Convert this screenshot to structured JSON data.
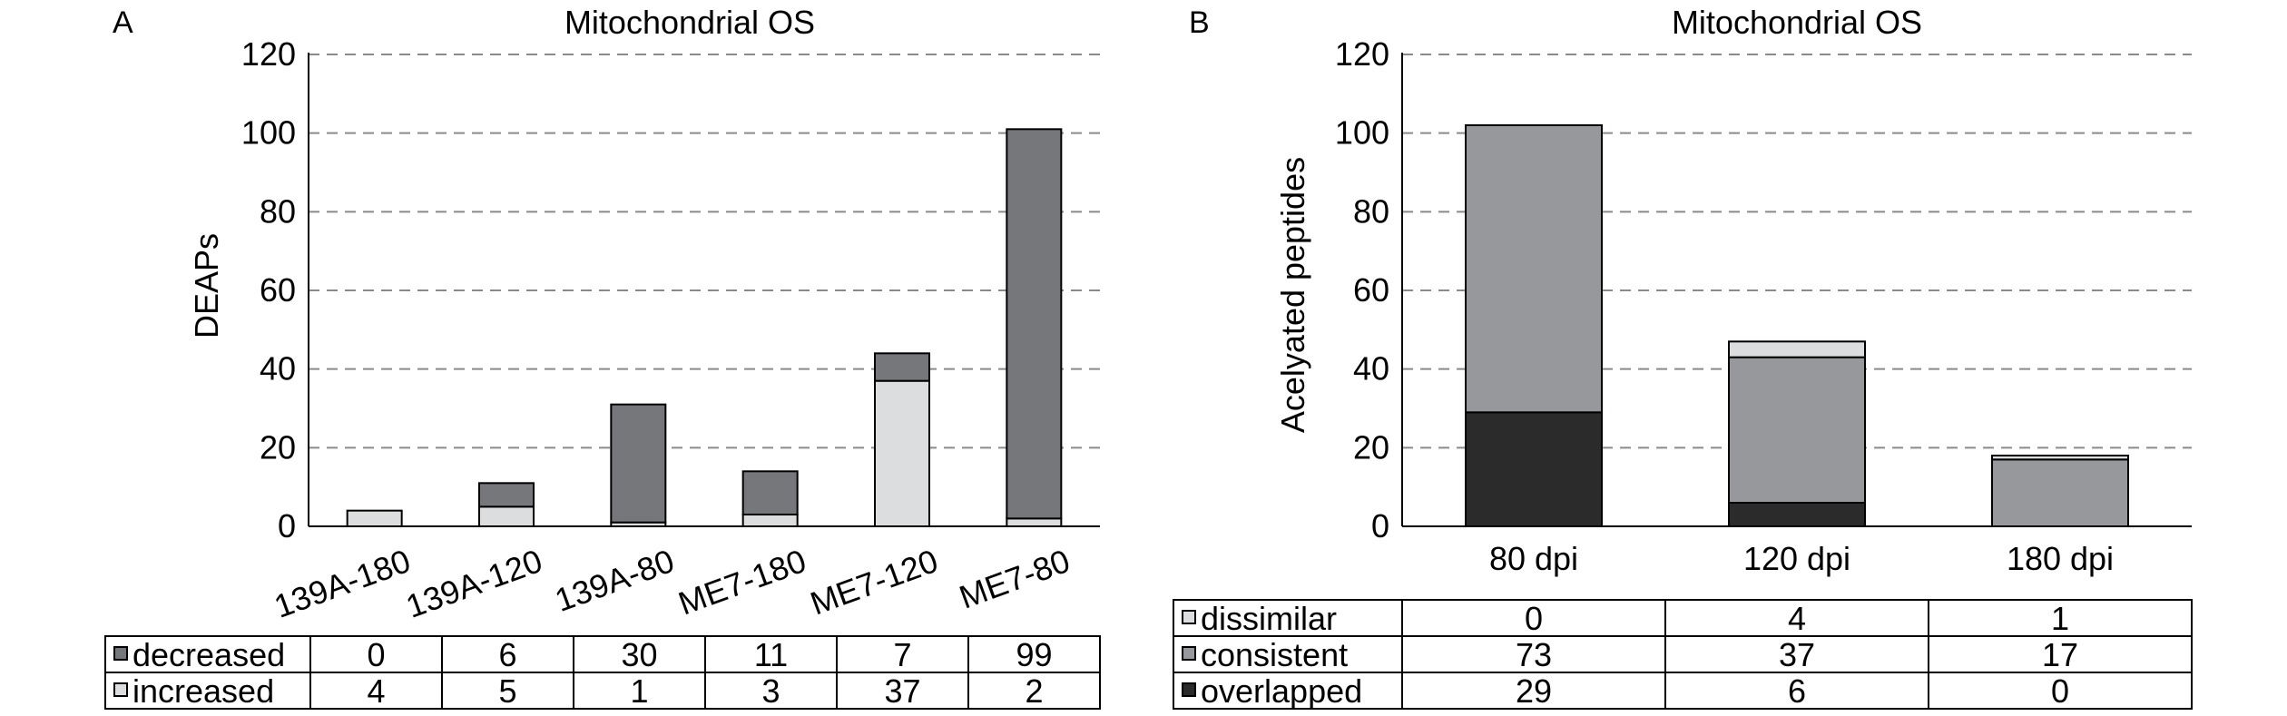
{
  "chart_data": [
    {
      "panel_label": "A",
      "type": "bar",
      "stacked": true,
      "title": "Mitochondrial OS",
      "ylabel": "DEAPs",
      "xlabel": "",
      "ylim": [
        0,
        120
      ],
      "yticks": [
        0,
        20,
        40,
        60,
        80,
        100,
        120
      ],
      "grid": true,
      "categories": [
        "139A-180",
        "139A-120",
        "139A-80",
        "ME7-180",
        "ME7-120",
        "ME7-80"
      ],
      "series": [
        {
          "name": "increased",
          "color": "#dcdddf",
          "values": [
            4,
            5,
            1,
            3,
            37,
            2
          ]
        },
        {
          "name": "decreased",
          "color": "#76777b",
          "values": [
            0,
            6,
            30,
            11,
            7,
            99
          ]
        }
      ],
      "table_rows": [
        {
          "label": "decreased",
          "legend_color": "#76777b",
          "values": [
            "0",
            "6",
            "30",
            "11",
            "7",
            "99"
          ]
        },
        {
          "label": "increased",
          "legend_color": "#dcdddf",
          "values": [
            "4",
            "5",
            "1",
            "3",
            "37",
            "2"
          ]
        }
      ]
    },
    {
      "panel_label": "B",
      "type": "bar",
      "stacked": true,
      "title": "Mitochondrial OS",
      "ylabel": "Acelyated peptides",
      "xlabel": "",
      "ylim": [
        0,
        120
      ],
      "yticks": [
        0,
        20,
        40,
        60,
        80,
        100,
        120
      ],
      "grid": true,
      "categories": [
        "80 dpi",
        "120 dpi",
        "180 dpi"
      ],
      "series": [
        {
          "name": "overlapped",
          "color": "#2b2b2c",
          "values": [
            29,
            6,
            0
          ]
        },
        {
          "name": "consistent",
          "color": "#97989b",
          "values": [
            73,
            37,
            17
          ]
        },
        {
          "name": "dissimilar",
          "color": "#dcdddf",
          "values": [
            0,
            4,
            1
          ]
        }
      ],
      "table_rows": [
        {
          "label": "dissimilar",
          "legend_color": "#dcdddf",
          "values": [
            "0",
            "4",
            "1"
          ]
        },
        {
          "label": "consistent",
          "legend_color": "#97989b",
          "values": [
            "73",
            "37",
            "17"
          ]
        },
        {
          "label": "overlapped",
          "legend_color": "#2b2b2c",
          "values": [
            "29",
            "6",
            "0"
          ]
        }
      ]
    }
  ]
}
